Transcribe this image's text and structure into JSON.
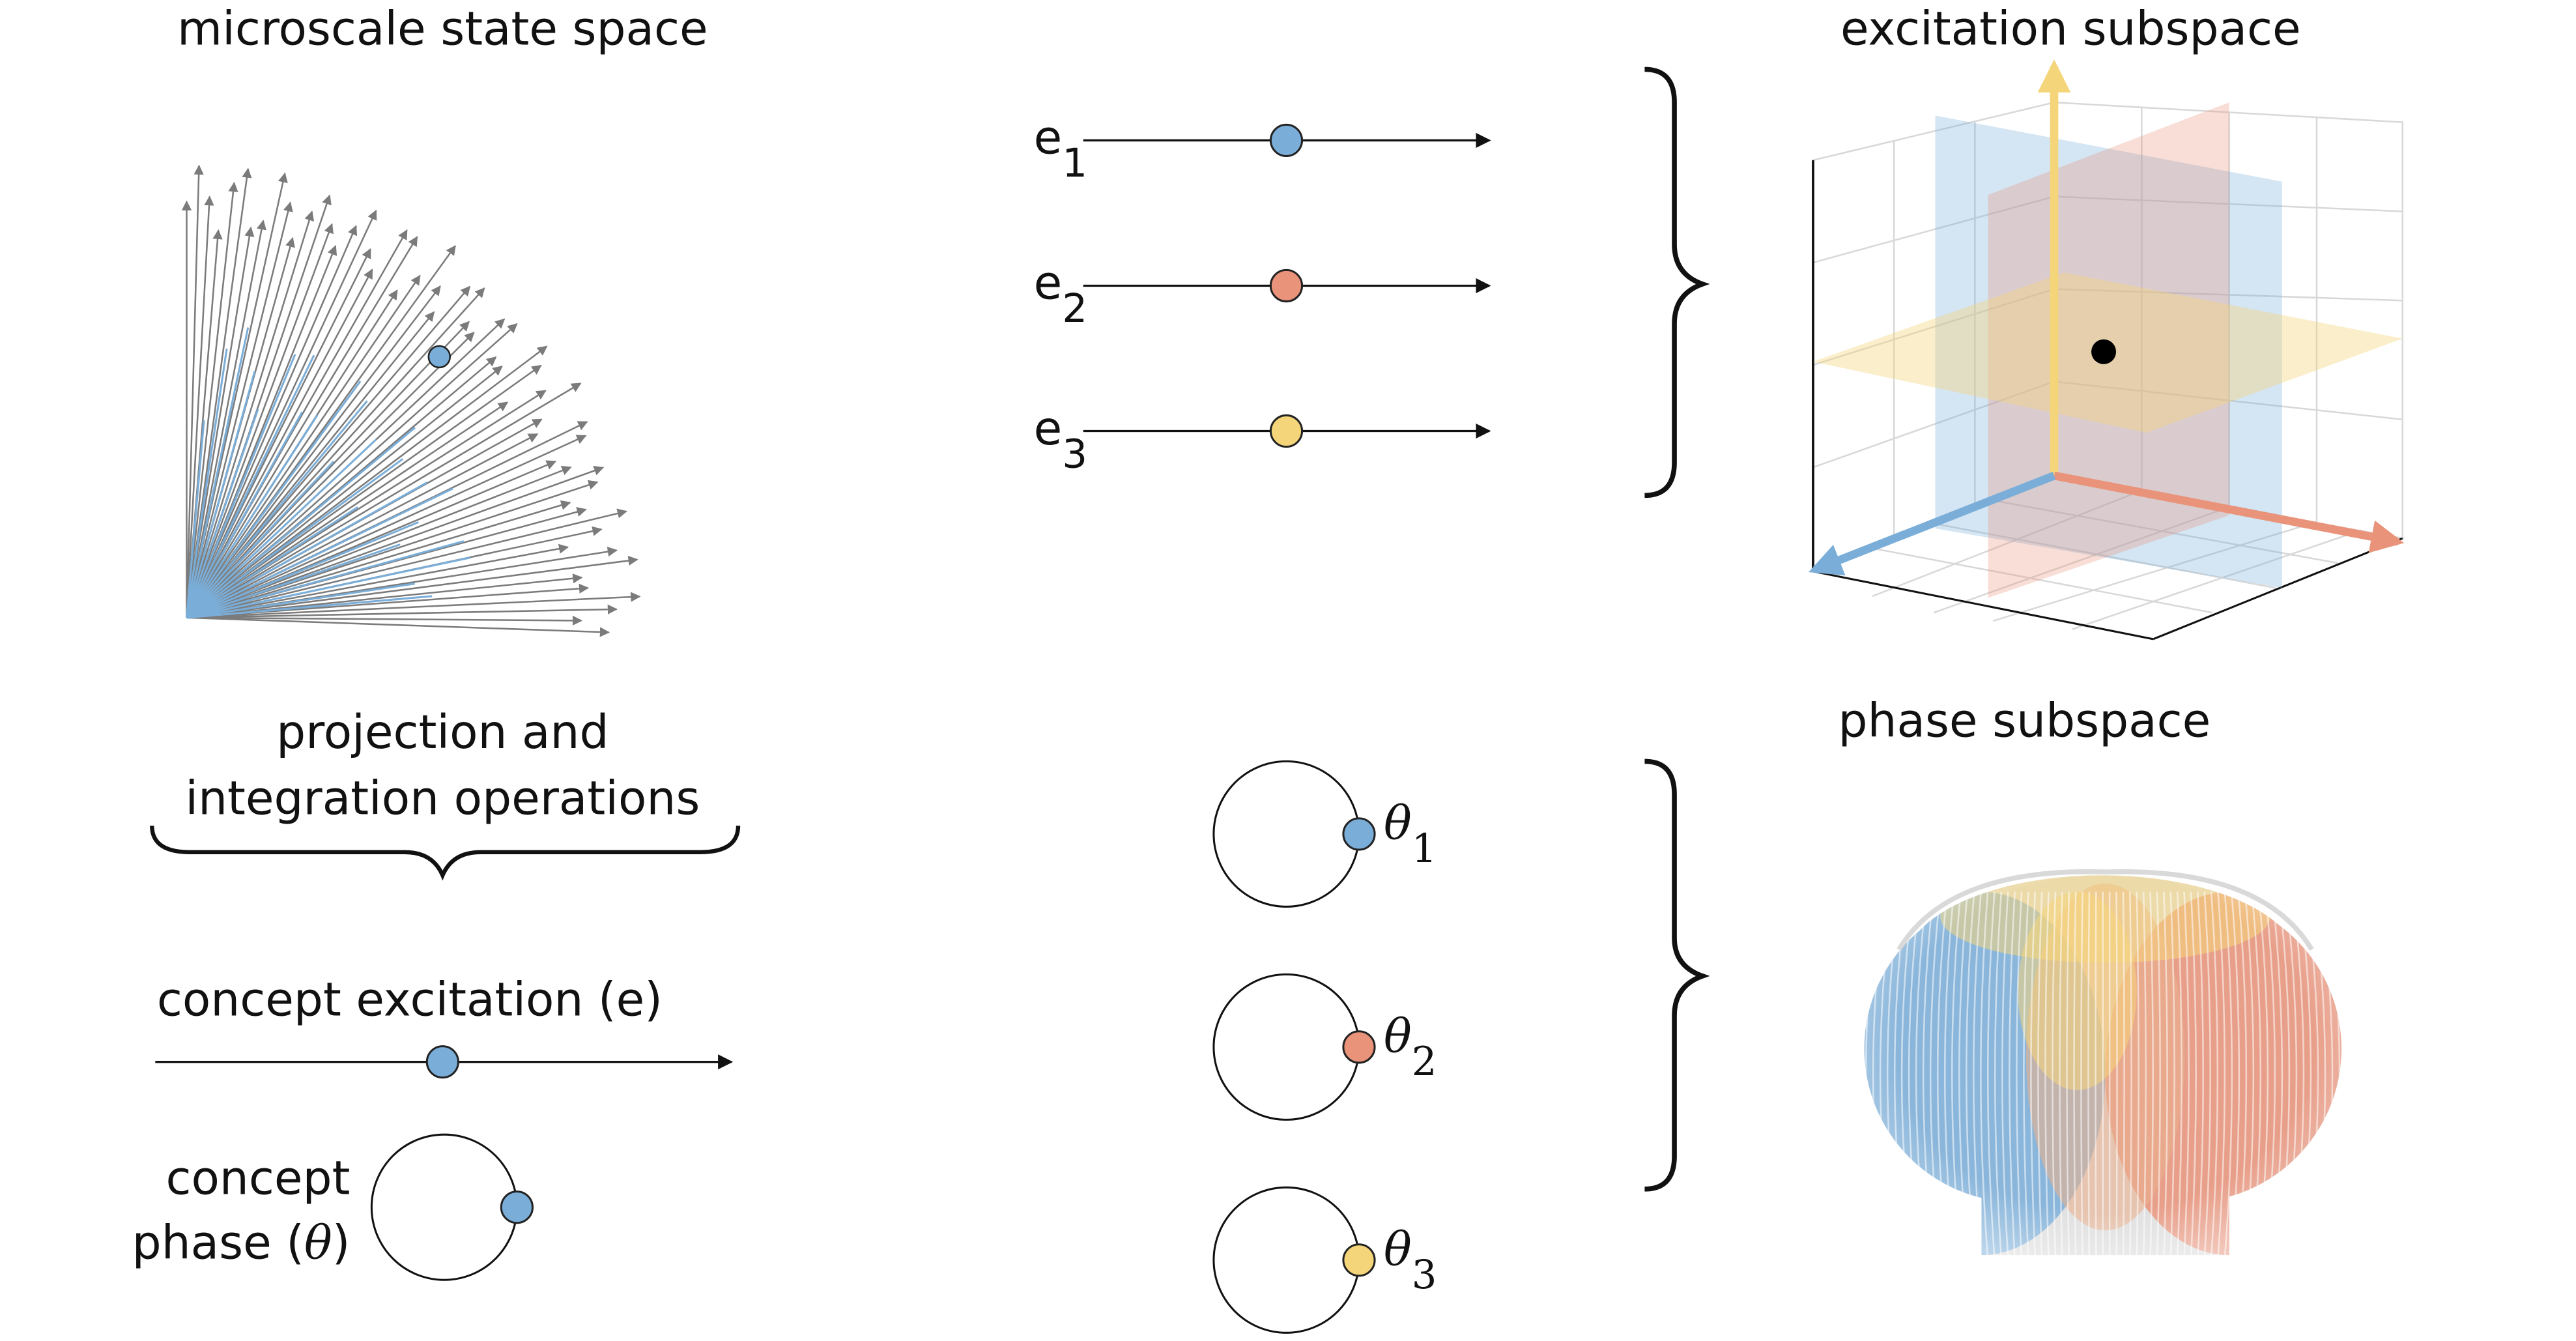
{
  "title_micro": "microscale state space",
  "title_excitation": "excitation subspace",
  "title_phase": "phase subspace",
  "operations_line1": "projection and",
  "operations_line2": "integration operations",
  "concept_excitation_label": "concept excitation (e)",
  "concept_phase_line1": "concept",
  "concept_phase_line2_pre": "phase (",
  "concept_phase_symbol": "θ",
  "concept_phase_line2_post": ")",
  "excitation_axes": [
    {
      "base": "e",
      "sub": "1",
      "color": "#7aaed9",
      "level": 0.5
    },
    {
      "base": "e",
      "sub": "2",
      "color": "#e9937a",
      "level": 0.5
    },
    {
      "base": "e",
      "sub": "3",
      "color": "#f5d57a",
      "level": 0.5
    }
  ],
  "phase_circles": [
    {
      "base": "θ",
      "sub": "1",
      "color": "#7aaed9"
    },
    {
      "base": "θ",
      "sub": "2",
      "color": "#e9937a"
    },
    {
      "base": "θ",
      "sub": "3",
      "color": "#f5d57a"
    }
  ],
  "colors": {
    "blue": "#7aaed9",
    "orange": "#e9937a",
    "yellow": "#f5d57a",
    "gray_vector": "#7b7b7b",
    "ink": "#111111"
  }
}
